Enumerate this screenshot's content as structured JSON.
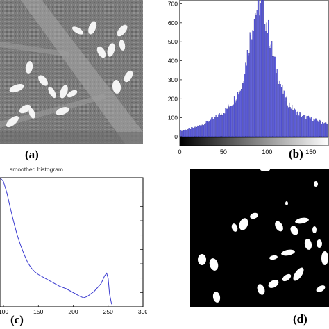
{
  "panels": {
    "a": {
      "label": "(a)"
    },
    "b": {
      "label": "(b)"
    },
    "c": {
      "label": "(c)"
    },
    "d": {
      "label": "(d)"
    }
  },
  "chart_data": [
    {
      "type": "bar",
      "panel": "b",
      "title": "",
      "xlabel": "",
      "ylabel": "",
      "xlim": [
        0,
        170
      ],
      "ylim": [
        0,
        720
      ],
      "x_ticks": [
        "0",
        "50",
        "100",
        "150"
      ],
      "y_ticks": [
        "0",
        "100",
        "200",
        "300",
        "400",
        "500",
        "600",
        "700"
      ],
      "bar_color": "#5b5bf5",
      "colorbar": "grayscale 0-255",
      "histogram_profile": {
        "x": [
          0,
          10,
          20,
          30,
          40,
          50,
          60,
          70,
          75,
          80,
          85,
          90,
          95,
          100,
          105,
          110,
          115,
          120,
          130,
          140,
          150,
          160,
          170
        ],
        "y": [
          30,
          40,
          55,
          75,
          100,
          130,
          180,
          260,
          380,
          520,
          640,
          700,
          690,
          580,
          460,
          360,
          280,
          200,
          140,
          110,
          95,
          80,
          65
        ]
      }
    },
    {
      "type": "line",
      "panel": "c",
      "title": "smoothed histogram",
      "xlabel": "",
      "ylabel": "",
      "xlim": [
        95,
        300
      ],
      "x_ticks": [
        "100",
        "150",
        "200",
        "250",
        "300"
      ],
      "series_color": "#3a3ad0",
      "series": [
        {
          "x": [
            95,
            100,
            105,
            110,
            115,
            120,
            125,
            130,
            135,
            140,
            145,
            150,
            160,
            170,
            180,
            190,
            200,
            210,
            215,
            220,
            230,
            240,
            245,
            248,
            250,
            252,
            255
          ],
          "y": [
            1.0,
            0.97,
            0.88,
            0.76,
            0.65,
            0.55,
            0.47,
            0.4,
            0.34,
            0.3,
            0.27,
            0.25,
            0.22,
            0.19,
            0.16,
            0.14,
            0.11,
            0.08,
            0.07,
            0.08,
            0.12,
            0.18,
            0.24,
            0.26,
            0.22,
            0.1,
            0.02
          ]
        }
      ]
    }
  ]
}
